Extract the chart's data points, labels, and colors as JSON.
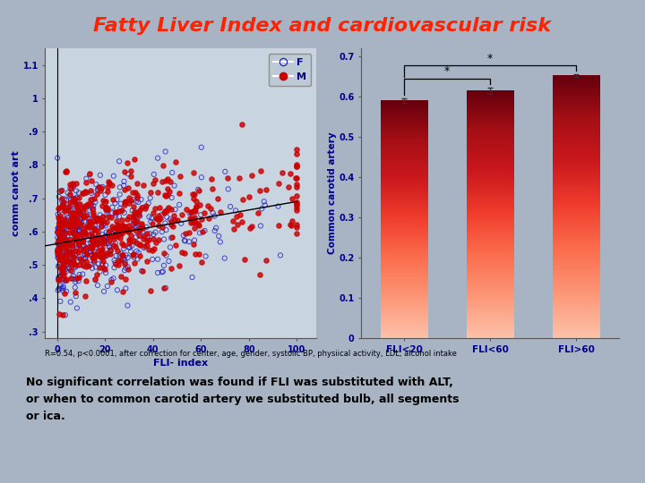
{
  "title": "Fatty Liver Index and cardiovascular risk",
  "title_color": "#FF2200",
  "title_fontsize": 16,
  "bg_color": "#A8B4C4",
  "scatter": {
    "xlabel": "FLI- index",
    "ylabel": "comm carot art",
    "xlim": [
      -5,
      108
    ],
    "ylim": [
      0.28,
      1.15
    ],
    "yticks": [
      0.3,
      0.4,
      0.5,
      0.6,
      0.7,
      0.8,
      0.9,
      1.0,
      1.1
    ],
    "ytick_labels": [
      ".3",
      ".4",
      ".5",
      ".6",
      ".7",
      ".8",
      ".9",
      "1",
      "1.1"
    ],
    "xticks": [
      0,
      20,
      40,
      60,
      80,
      100
    ],
    "trend_x": [
      -5,
      100
    ],
    "trend_y": [
      0.557,
      0.69
    ],
    "n_female": 450,
    "n_male": 550,
    "seed": 42
  },
  "bar": {
    "categories": [
      "FLI<20",
      "FLI<60",
      "FLI>60"
    ],
    "values": [
      0.59,
      0.615,
      0.652
    ],
    "errors": [
      0.006,
      0.008,
      0.004
    ],
    "ylabel": "Common carotid artery",
    "ylim": [
      0,
      0.72
    ],
    "yticks": [
      0,
      0.1,
      0.2,
      0.3,
      0.4,
      0.5,
      0.6,
      0.7
    ],
    "bar_width": 0.55
  },
  "annotation_text": "R=0.54, p<0.0001, after correction for center, age, gender, systolic BP, physiical activity, LDL, alcohol intake",
  "bottom_text": "No significant correlation was found if FLI was substituted with ALT,\nor when to common carotid artery we substituted bulb, all segments\nor ica.",
  "bottom_bg": "#A8C8D8",
  "axis_label_color": "#00008B",
  "tick_color": "#00008B"
}
